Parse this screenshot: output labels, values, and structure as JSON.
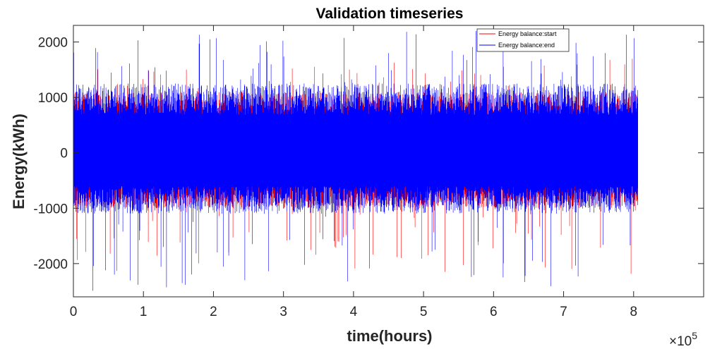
{
  "chart_data": {
    "type": "line",
    "title": "Validation timeseries",
    "xlabel": "time(hours)",
    "ylabel": "Energy(kWh)",
    "x_exponent_base": "×10",
    "x_exponent_power": "5",
    "xlim": [
      0,
      9
    ],
    "ylim": [
      -2600,
      2300
    ],
    "x_ticks": [
      0,
      1,
      2,
      3,
      4,
      5,
      6,
      7,
      8
    ],
    "x_tick_labels": [
      "0",
      "1",
      "2",
      "3",
      "4",
      "5",
      "6",
      "7",
      "8"
    ],
    "y_ticks": [
      -2000,
      -1000,
      0,
      1000,
      2000
    ],
    "y_tick_labels": [
      "-2000",
      "-1000",
      "0",
      "1000",
      "2000"
    ],
    "x_data_max": 8.06,
    "legend_position": "top-right",
    "grid": false,
    "series": [
      {
        "name": "Energy balance:start",
        "color": "#ff0000",
        "typical_range": [
          -1000,
          1100
        ],
        "peak_max": 1700,
        "peak_min": -2200
      },
      {
        "name": "Energy balance:end",
        "color": "#0000ff",
        "typical_range": [
          -1100,
          1250
        ],
        "peak_max": 2200,
        "peak_min": -2500
      }
    ]
  }
}
